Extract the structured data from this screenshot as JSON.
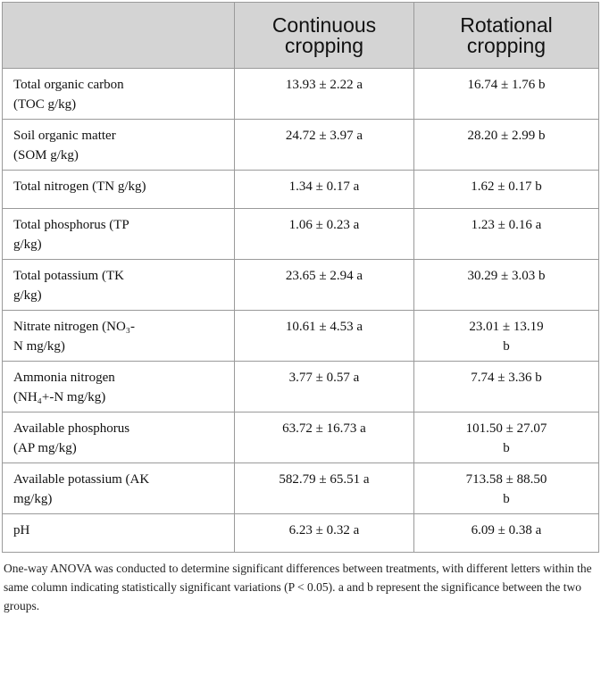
{
  "table": {
    "headers": [
      "",
      "Continuous\ncropping",
      "Rotational\ncropping"
    ],
    "header_lines": {
      "continuous": [
        "Continuous",
        "cropping"
      ],
      "rotational": [
        "Rotational",
        "cropping"
      ]
    },
    "rows": [
      {
        "label": [
          "Total organic carbon",
          "(TOC g/kg)"
        ],
        "continuous": [
          "13.93 ± 2.22 a"
        ],
        "rotational": [
          "16.74 ± 1.76 b"
        ]
      },
      {
        "label": [
          "Soil organic matter",
          "(SOM g/kg)"
        ],
        "continuous": [
          "24.72 ± 3.97 a"
        ],
        "rotational": [
          "28.20 ± 2.99 b"
        ]
      },
      {
        "label": [
          "Total nitrogen (TN g/kg)"
        ],
        "continuous": [
          "1.34 ± 0.17 a"
        ],
        "rotational": [
          "1.62 ± 0.17 b"
        ]
      },
      {
        "label": [
          "Total phosphorus (TP",
          "g/kg)"
        ],
        "continuous": [
          "1.06 ± 0.23 a"
        ],
        "rotational": [
          "1.23 ± 0.16 a"
        ]
      },
      {
        "label": [
          "Total potassium (TK",
          "g/kg)"
        ],
        "continuous": [
          "23.65 ± 2.94 a"
        ],
        "rotational": [
          "30.29 ± 3.03 b"
        ]
      },
      {
        "label": [
          "Nitrate nitrogen (NO₃-",
          "N mg/kg)"
        ],
        "continuous": [
          "10.61 ± 4.53 a"
        ],
        "rotational": [
          "23.01 ± 13.19",
          "b"
        ]
      },
      {
        "label": [
          "Ammonia nitrogen",
          "(NH₄+-N mg/kg)"
        ],
        "continuous": [
          "3.77 ± 0.57 a"
        ],
        "rotational": [
          "7.74 ± 3.36 b"
        ]
      },
      {
        "label": [
          "Available phosphorus",
          "(AP mg/kg)"
        ],
        "continuous": [
          "63.72 ± 16.73 a"
        ],
        "rotational": [
          "101.50 ± 27.07",
          "b"
        ]
      },
      {
        "label": [
          "Available potassium (AK",
          "mg/kg)"
        ],
        "continuous": [
          "582.79 ± 65.51 a"
        ],
        "rotational": [
          "713.58 ± 88.50",
          "b"
        ]
      },
      {
        "label": [
          "pH"
        ],
        "continuous": [
          "6.23 ± 0.32 a"
        ],
        "rotational": [
          "6.09 ± 0.38 a"
        ]
      }
    ]
  },
  "footnote": "One-way ANOVA was conducted to determine significant differences between treatments, with different letters within the same column indicating statistically significant variations (P < 0.05). a and b represent the significance between the two groups."
}
